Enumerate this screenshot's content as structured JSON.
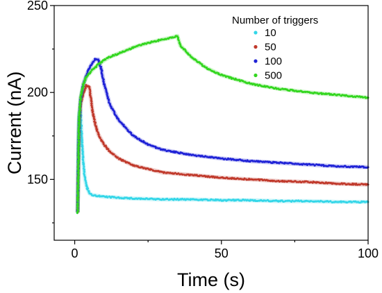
{
  "chart_data": {
    "type": "scatter",
    "xlabel": "Time (s)",
    "ylabel": "Current (nA)",
    "xlim": [
      -7,
      100
    ],
    "ylim": [
      115,
      250
    ],
    "xticks": [
      0,
      50,
      100
    ],
    "yticks": [
      150,
      200,
      250
    ],
    "grid": false,
    "legend": {
      "title": "Number of triggers",
      "placement": "top-right"
    },
    "series": [
      {
        "name": "10",
        "color": "#33d6e8",
        "x": [
          1,
          1.2,
          1.5,
          2,
          2.5,
          3,
          3.5,
          4,
          5,
          6,
          8,
          10,
          15,
          20,
          30,
          40,
          50,
          60,
          70,
          80,
          90,
          100
        ],
        "y": [
          131,
          172,
          188,
          190,
          170,
          158,
          150,
          146,
          142,
          141,
          140.5,
          140,
          139.5,
          139,
          138.5,
          138.5,
          138,
          138,
          137.5,
          137.5,
          137,
          137
        ]
      },
      {
        "name": "50",
        "color": "#c0392b",
        "x": [
          1,
          1.5,
          2,
          3,
          4,
          5,
          6,
          7,
          8,
          10,
          12,
          15,
          20,
          25,
          30,
          40,
          50,
          60,
          70,
          80,
          90,
          100
        ],
        "y": [
          131,
          180,
          193,
          200,
          204,
          203,
          190,
          182,
          176,
          170,
          166,
          162,
          158,
          156,
          154,
          152.5,
          151,
          150,
          149,
          148.5,
          147.5,
          147
        ]
      },
      {
        "name": "100",
        "color": "#1f22d6",
        "x": [
          1,
          1.5,
          2,
          3,
          4,
          5,
          6,
          7,
          8,
          9,
          10,
          12,
          15,
          20,
          25,
          30,
          40,
          50,
          60,
          70,
          80,
          90,
          100
        ],
        "y": [
          131,
          183,
          196,
          205,
          210,
          214,
          217,
          219,
          219,
          214,
          205,
          193,
          184,
          175,
          170,
          167,
          164,
          162,
          160.5,
          159.5,
          158.5,
          157.5,
          157
        ]
      },
      {
        "name": "500",
        "color": "#33d61f",
        "x": [
          1,
          1.5,
          2,
          3,
          4,
          6,
          8,
          10,
          12,
          15,
          18,
          20,
          25,
          30,
          33,
          35,
          36,
          40,
          45,
          50,
          60,
          70,
          80,
          90,
          100
        ],
        "y": [
          131,
          186,
          197,
          205,
          209,
          213,
          216,
          218.5,
          220.5,
          222.5,
          224.5,
          226,
          228.5,
          230.5,
          231.5,
          232.5,
          227,
          220,
          214,
          210,
          205,
          202,
          200,
          198.5,
          197
        ]
      }
    ]
  }
}
